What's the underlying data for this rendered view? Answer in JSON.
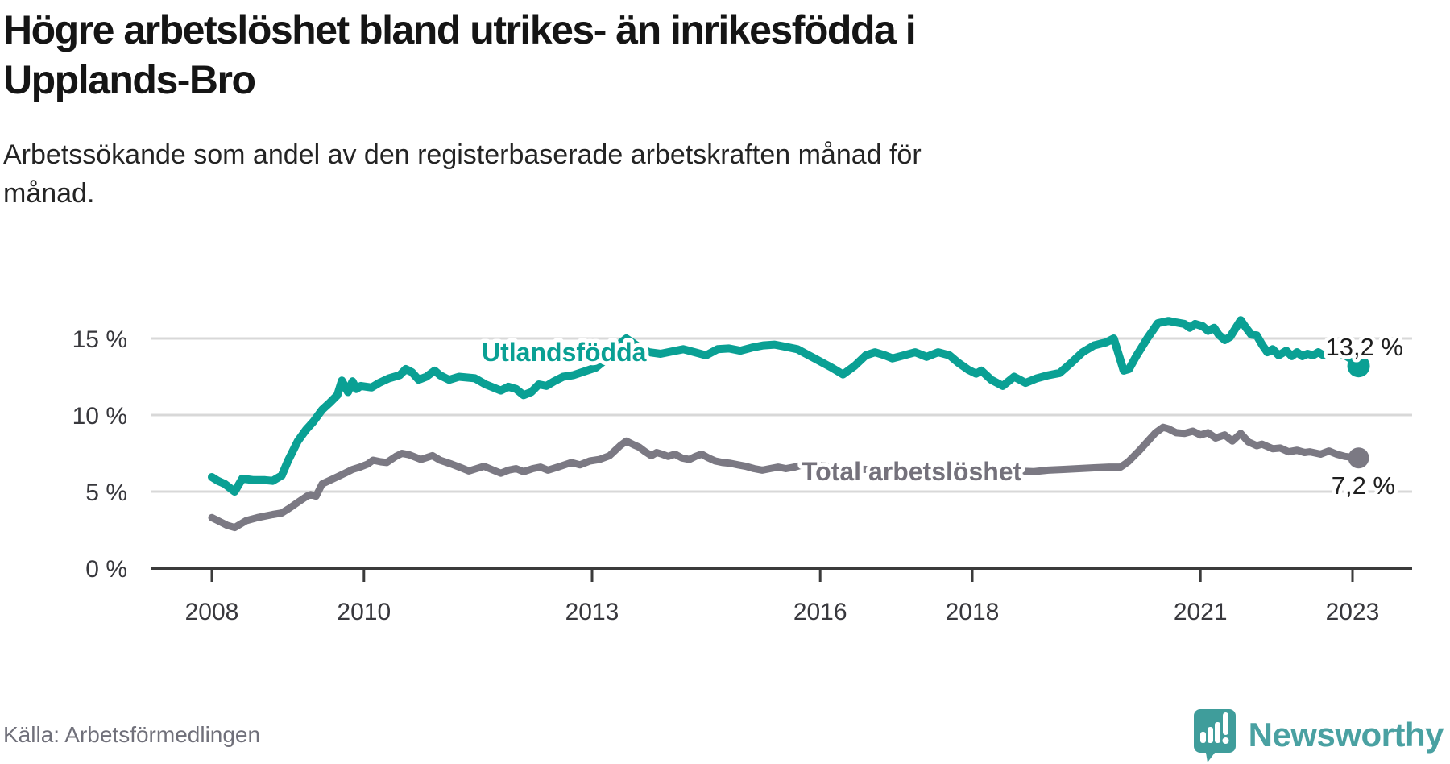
{
  "header": {
    "title_line1": "Högre arbetslöshet bland utrikes- än inrikesfödda i",
    "title_line2": "Upplands-Bro",
    "subtitle_line1": "Arbetssökande som andel av den registerbaserade arbetskraften månad för",
    "subtitle_line2": "månad."
  },
  "footer": {
    "source": "Källa: Arbetsförmedlingen",
    "logo_text": "Newsworthy",
    "logo_icon": "newsworthy-speech-bubble-bar-chart-icon"
  },
  "colors": {
    "foreign_born": "#0aa094",
    "total": "#7b7983",
    "total_label": "#74717b",
    "grid": "#d8d8d8",
    "axis": "#3b3b3b",
    "value_label": "#1f1f1f",
    "brand_teal": "#4aa1a2",
    "brand_icon": "#3f9d9b"
  },
  "chart_data": {
    "type": "line",
    "title": "Högre arbetslöshet bland utrikes- än inrikesfödda i Upplands-Bro",
    "subtitle": "Arbetssökande som andel av den registerbaserade arbetskraften månad för månad.",
    "xlabel": "",
    "ylabel": "",
    "x_unit": "year (monthly data)",
    "y_unit": "%",
    "xlim": [
      2007.9,
      2023.6
    ],
    "ylim": [
      0,
      16.5
    ],
    "grid": "horizontal",
    "legend_position": "inline-labels",
    "yticks": [
      {
        "value": 0,
        "label": "0 %"
      },
      {
        "value": 5,
        "label": "5 %"
      },
      {
        "value": 10,
        "label": "10 %"
      },
      {
        "value": 15,
        "label": "15 %"
      }
    ],
    "xticks": [
      {
        "value": 2008,
        "label": "2008"
      },
      {
        "value": 2010,
        "label": "2010"
      },
      {
        "value": 2013,
        "label": "2013"
      },
      {
        "value": 2016,
        "label": "2016"
      },
      {
        "value": 2018,
        "label": "2018"
      },
      {
        "value": 2021,
        "label": "2021"
      },
      {
        "value": 2023,
        "label": "2023"
      }
    ],
    "series": [
      {
        "name": "Utlandsfödda",
        "color": "#0aa094",
        "end_value": 13.2,
        "end_label": "13,2 %",
        "points": [
          [
            2008.0,
            5.95
          ],
          [
            2008.08,
            5.7
          ],
          [
            2008.17,
            5.5
          ],
          [
            2008.3,
            5.0
          ],
          [
            2008.4,
            5.85
          ],
          [
            2008.55,
            5.75
          ],
          [
            2008.7,
            5.75
          ],
          [
            2008.8,
            5.7
          ],
          [
            2008.92,
            6.05
          ],
          [
            2009.0,
            7.0
          ],
          [
            2009.13,
            8.3
          ],
          [
            2009.24,
            9.05
          ],
          [
            2009.34,
            9.6
          ],
          [
            2009.45,
            10.35
          ],
          [
            2009.55,
            10.8
          ],
          [
            2009.65,
            11.3
          ],
          [
            2009.71,
            12.25
          ],
          [
            2009.79,
            11.5
          ],
          [
            2009.85,
            12.2
          ],
          [
            2009.9,
            11.7
          ],
          [
            2009.96,
            11.9
          ],
          [
            2010.1,
            11.8
          ],
          [
            2010.2,
            12.1
          ],
          [
            2010.33,
            12.4
          ],
          [
            2010.47,
            12.6
          ],
          [
            2010.55,
            13.0
          ],
          [
            2010.63,
            12.8
          ],
          [
            2010.72,
            12.3
          ],
          [
            2010.82,
            12.5
          ],
          [
            2010.93,
            12.9
          ],
          [
            2011.0,
            12.6
          ],
          [
            2011.12,
            12.3
          ],
          [
            2011.25,
            12.5
          ],
          [
            2011.46,
            12.4
          ],
          [
            2011.6,
            12.0
          ],
          [
            2011.8,
            11.6
          ],
          [
            2011.9,
            11.85
          ],
          [
            2012.0,
            11.7
          ],
          [
            2012.1,
            11.3
          ],
          [
            2012.2,
            11.5
          ],
          [
            2012.3,
            12.0
          ],
          [
            2012.4,
            11.9
          ],
          [
            2012.5,
            12.2
          ],
          [
            2012.62,
            12.5
          ],
          [
            2012.75,
            12.6
          ],
          [
            2012.9,
            12.85
          ],
          [
            2013.05,
            13.1
          ],
          [
            2013.2,
            13.7
          ],
          [
            2013.35,
            14.6
          ],
          [
            2013.45,
            15.0
          ],
          [
            2013.6,
            14.5
          ],
          [
            2013.75,
            14.1
          ],
          [
            2013.9,
            14.0
          ],
          [
            2014.05,
            14.15
          ],
          [
            2014.2,
            14.3
          ],
          [
            2014.35,
            14.1
          ],
          [
            2014.5,
            13.9
          ],
          [
            2014.65,
            14.3
          ],
          [
            2014.8,
            14.35
          ],
          [
            2014.95,
            14.2
          ],
          [
            2015.1,
            14.4
          ],
          [
            2015.25,
            14.55
          ],
          [
            2015.4,
            14.6
          ],
          [
            2015.55,
            14.45
          ],
          [
            2015.7,
            14.3
          ],
          [
            2015.85,
            13.9
          ],
          [
            2016.0,
            13.5
          ],
          [
            2016.15,
            13.1
          ],
          [
            2016.3,
            12.65
          ],
          [
            2016.45,
            13.2
          ],
          [
            2016.6,
            13.9
          ],
          [
            2016.72,
            14.1
          ],
          [
            2016.85,
            13.9
          ],
          [
            2016.95,
            13.7
          ],
          [
            2017.1,
            13.9
          ],
          [
            2017.25,
            14.1
          ],
          [
            2017.4,
            13.8
          ],
          [
            2017.55,
            14.1
          ],
          [
            2017.7,
            13.9
          ],
          [
            2017.82,
            13.4
          ],
          [
            2017.95,
            12.95
          ],
          [
            2018.05,
            12.7
          ],
          [
            2018.12,
            12.9
          ],
          [
            2018.25,
            12.3
          ],
          [
            2018.4,
            11.9
          ],
          [
            2018.55,
            12.5
          ],
          [
            2018.7,
            12.1
          ],
          [
            2018.85,
            12.4
          ],
          [
            2019.0,
            12.6
          ],
          [
            2019.15,
            12.75
          ],
          [
            2019.3,
            13.4
          ],
          [
            2019.45,
            14.1
          ],
          [
            2019.6,
            14.55
          ],
          [
            2019.76,
            14.75
          ],
          [
            2019.86,
            15.0
          ],
          [
            2019.99,
            12.9
          ],
          [
            2020.06,
            13.0
          ],
          [
            2020.15,
            13.8
          ],
          [
            2020.3,
            15.0
          ],
          [
            2020.44,
            16.0
          ],
          [
            2020.58,
            16.15
          ],
          [
            2020.68,
            16.05
          ],
          [
            2020.79,
            15.95
          ],
          [
            2020.86,
            15.7
          ],
          [
            2020.93,
            15.95
          ],
          [
            2021.03,
            15.8
          ],
          [
            2021.1,
            15.5
          ],
          [
            2021.18,
            15.7
          ],
          [
            2021.24,
            15.25
          ],
          [
            2021.32,
            14.9
          ],
          [
            2021.39,
            15.1
          ],
          [
            2021.53,
            16.2
          ],
          [
            2021.6,
            15.7
          ],
          [
            2021.67,
            15.25
          ],
          [
            2021.74,
            15.2
          ],
          [
            2021.81,
            14.6
          ],
          [
            2021.88,
            14.1
          ],
          [
            2021.95,
            14.3
          ],
          [
            2022.03,
            13.9
          ],
          [
            2022.13,
            14.2
          ],
          [
            2022.2,
            13.85
          ],
          [
            2022.27,
            14.1
          ],
          [
            2022.34,
            13.85
          ],
          [
            2022.41,
            14.0
          ],
          [
            2022.48,
            13.9
          ],
          [
            2022.55,
            14.1
          ],
          [
            2022.62,
            13.9
          ],
          [
            2022.69,
            14.0
          ],
          [
            2022.76,
            13.9
          ],
          [
            2022.83,
            14.0
          ],
          [
            2022.9,
            13.9
          ],
          [
            2023.0,
            13.6
          ],
          [
            2023.08,
            13.2
          ]
        ]
      },
      {
        "name": "Total arbetslöshet",
        "color": "#7b7983",
        "end_value": 7.2,
        "end_label": "7,2 %",
        "points": [
          [
            2008.0,
            3.3
          ],
          [
            2008.1,
            3.05
          ],
          [
            2008.2,
            2.8
          ],
          [
            2008.3,
            2.65
          ],
          [
            2008.45,
            3.1
          ],
          [
            2008.6,
            3.3
          ],
          [
            2008.8,
            3.5
          ],
          [
            2008.92,
            3.6
          ],
          [
            2009.03,
            3.95
          ],
          [
            2009.13,
            4.3
          ],
          [
            2009.25,
            4.7
          ],
          [
            2009.3,
            4.8
          ],
          [
            2009.37,
            4.7
          ],
          [
            2009.45,
            5.5
          ],
          [
            2009.6,
            5.85
          ],
          [
            2009.75,
            6.2
          ],
          [
            2009.85,
            6.45
          ],
          [
            2009.95,
            6.6
          ],
          [
            2010.05,
            6.8
          ],
          [
            2010.12,
            7.05
          ],
          [
            2010.22,
            6.95
          ],
          [
            2010.3,
            6.9
          ],
          [
            2010.42,
            7.3
          ],
          [
            2010.5,
            7.5
          ],
          [
            2010.6,
            7.4
          ],
          [
            2010.75,
            7.1
          ],
          [
            2010.9,
            7.35
          ],
          [
            2011.0,
            7.05
          ],
          [
            2011.15,
            6.8
          ],
          [
            2011.28,
            6.55
          ],
          [
            2011.38,
            6.35
          ],
          [
            2011.48,
            6.5
          ],
          [
            2011.58,
            6.65
          ],
          [
            2011.7,
            6.4
          ],
          [
            2011.8,
            6.2
          ],
          [
            2011.9,
            6.4
          ],
          [
            2012.0,
            6.5
          ],
          [
            2012.1,
            6.3
          ],
          [
            2012.22,
            6.5
          ],
          [
            2012.32,
            6.6
          ],
          [
            2012.42,
            6.4
          ],
          [
            2012.55,
            6.6
          ],
          [
            2012.73,
            6.9
          ],
          [
            2012.84,
            6.75
          ],
          [
            2012.97,
            7.0
          ],
          [
            2013.1,
            7.1
          ],
          [
            2013.23,
            7.35
          ],
          [
            2013.37,
            8.0
          ],
          [
            2013.45,
            8.3
          ],
          [
            2013.55,
            8.05
          ],
          [
            2013.62,
            7.9
          ],
          [
            2013.7,
            7.6
          ],
          [
            2013.78,
            7.35
          ],
          [
            2013.85,
            7.55
          ],
          [
            2013.92,
            7.45
          ],
          [
            2014.0,
            7.3
          ],
          [
            2014.09,
            7.45
          ],
          [
            2014.18,
            7.2
          ],
          [
            2014.28,
            7.1
          ],
          [
            2014.36,
            7.3
          ],
          [
            2014.44,
            7.45
          ],
          [
            2014.53,
            7.2
          ],
          [
            2014.62,
            7.0
          ],
          [
            2014.72,
            6.9
          ],
          [
            2014.82,
            6.85
          ],
          [
            2014.92,
            6.75
          ],
          [
            2015.02,
            6.65
          ],
          [
            2015.13,
            6.5
          ],
          [
            2015.24,
            6.4
          ],
          [
            2015.34,
            6.5
          ],
          [
            2015.45,
            6.6
          ],
          [
            2015.55,
            6.5
          ],
          [
            2015.66,
            6.6
          ],
          [
            2015.77,
            6.75
          ],
          [
            2015.87,
            6.85
          ],
          [
            2016.0,
            6.7
          ],
          [
            2016.2,
            6.6
          ],
          [
            2016.4,
            6.5
          ],
          [
            2016.6,
            6.45
          ],
          [
            2016.8,
            6.4
          ],
          [
            2017.0,
            6.35
          ],
          [
            2017.2,
            6.3
          ],
          [
            2017.4,
            6.3
          ],
          [
            2017.6,
            6.25
          ],
          [
            2017.8,
            6.3
          ],
          [
            2018.0,
            6.3
          ],
          [
            2018.2,
            6.25
          ],
          [
            2018.4,
            6.3
          ],
          [
            2018.6,
            6.35
          ],
          [
            2018.8,
            6.3
          ],
          [
            2019.0,
            6.4
          ],
          [
            2019.2,
            6.45
          ],
          [
            2019.4,
            6.5
          ],
          [
            2019.6,
            6.55
          ],
          [
            2019.8,
            6.6
          ],
          [
            2019.95,
            6.6
          ],
          [
            2020.05,
            6.95
          ],
          [
            2020.2,
            7.7
          ],
          [
            2020.3,
            8.25
          ],
          [
            2020.41,
            8.85
          ],
          [
            2020.51,
            9.2
          ],
          [
            2020.58,
            9.1
          ],
          [
            2020.68,
            8.85
          ],
          [
            2020.79,
            8.8
          ],
          [
            2020.9,
            8.95
          ],
          [
            2021.0,
            8.7
          ],
          [
            2021.1,
            8.85
          ],
          [
            2021.2,
            8.5
          ],
          [
            2021.32,
            8.7
          ],
          [
            2021.42,
            8.3
          ],
          [
            2021.53,
            8.8
          ],
          [
            2021.63,
            8.25
          ],
          [
            2021.74,
            8.0
          ],
          [
            2021.81,
            8.1
          ],
          [
            2021.95,
            7.8
          ],
          [
            2022.05,
            7.85
          ],
          [
            2022.16,
            7.6
          ],
          [
            2022.27,
            7.7
          ],
          [
            2022.37,
            7.55
          ],
          [
            2022.44,
            7.6
          ],
          [
            2022.58,
            7.45
          ],
          [
            2022.69,
            7.65
          ],
          [
            2022.79,
            7.45
          ],
          [
            2022.9,
            7.3
          ],
          [
            2023.0,
            7.25
          ],
          [
            2023.08,
            7.2
          ]
        ]
      }
    ]
  }
}
